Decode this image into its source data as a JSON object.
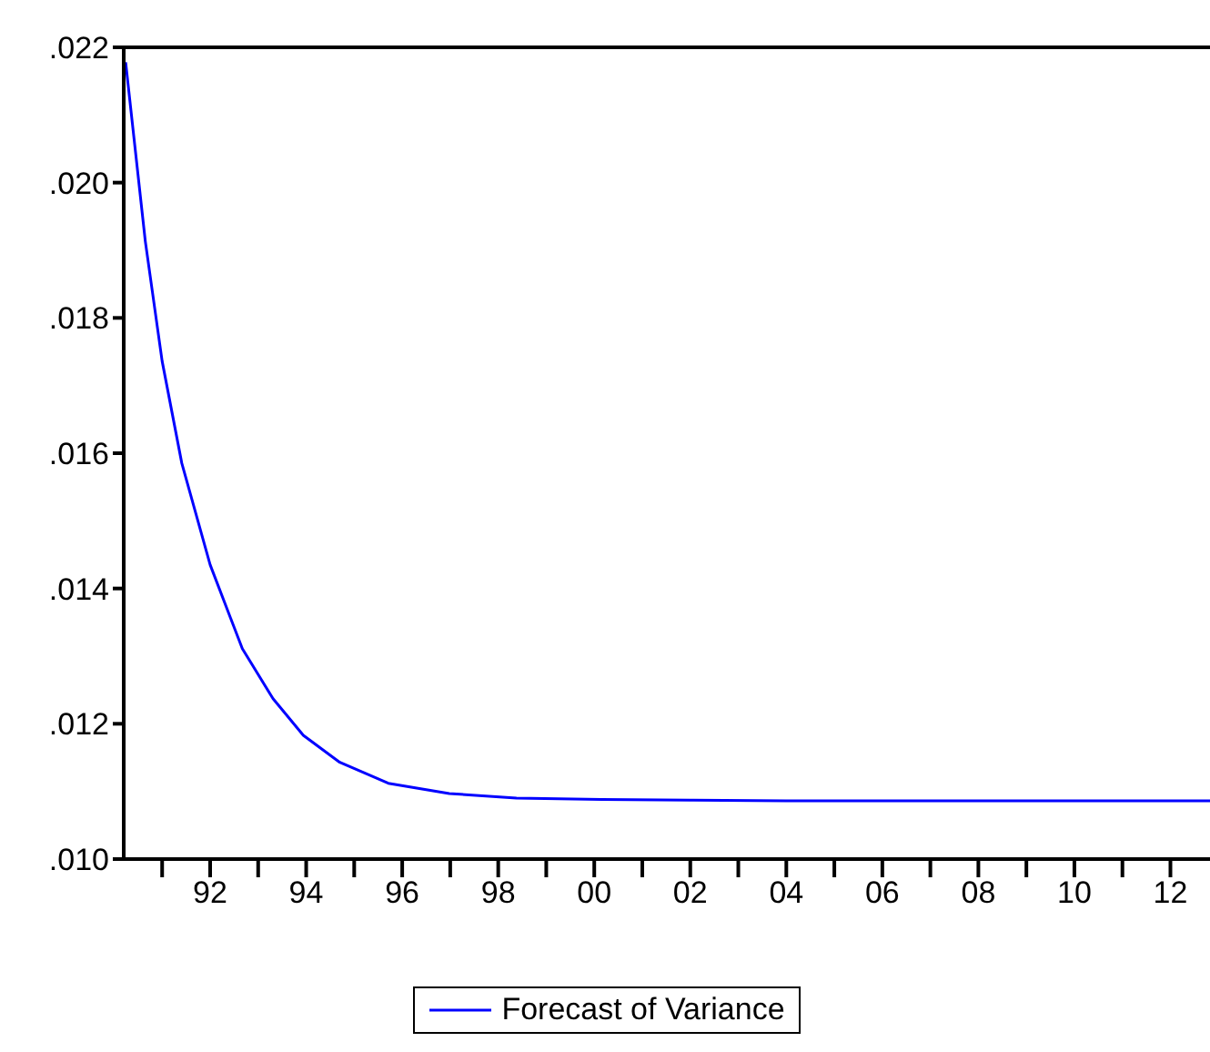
{
  "chart_data": {
    "type": "line",
    "x": [
      1990.24,
      1990.65,
      1991.0,
      1991.41,
      1992.0,
      1992.67,
      1993.31,
      1993.94,
      1994.7,
      1995.71,
      1996.98,
      1998.38,
      2000.15,
      2002.0,
      2004.0,
      2006.0,
      2008.0,
      2010.0,
      2012.0,
      2012.9
    ],
    "series": [
      {
        "name": "Forecast of Variance",
        "color": "#0000ff",
        "values": [
          0.02178,
          0.01913,
          0.01736,
          0.01585,
          0.01435,
          0.01311,
          0.01237,
          0.01183,
          0.01143,
          0.01112,
          0.01097,
          0.0109,
          0.01088,
          0.01087,
          0.01086,
          0.01086,
          0.01086,
          0.01086,
          0.01086,
          0.01086
        ]
      }
    ],
    "xlim": [
      1990.2,
      2012.9
    ],
    "xticks": [
      {
        "value": 1991,
        "label": null
      },
      {
        "value": 1992,
        "label": "92"
      },
      {
        "value": 1993,
        "label": null
      },
      {
        "value": 1994,
        "label": "94"
      },
      {
        "value": 1995,
        "label": null
      },
      {
        "value": 1996,
        "label": "96"
      },
      {
        "value": 1997,
        "label": null
      },
      {
        "value": 1998,
        "label": "98"
      },
      {
        "value": 1999,
        "label": null
      },
      {
        "value": 2000,
        "label": "00"
      },
      {
        "value": 2001,
        "label": null
      },
      {
        "value": 2002,
        "label": "02"
      },
      {
        "value": 2003,
        "label": null
      },
      {
        "value": 2004,
        "label": "04"
      },
      {
        "value": 2005,
        "label": null
      },
      {
        "value": 2006,
        "label": "06"
      },
      {
        "value": 2007,
        "label": null
      },
      {
        "value": 2008,
        "label": "08"
      },
      {
        "value": 2009,
        "label": null
      },
      {
        "value": 2010,
        "label": "10"
      },
      {
        "value": 2011,
        "label": null
      },
      {
        "value": 2012,
        "label": "12"
      }
    ],
    "ylim": [
      0.01,
      0.022
    ],
    "yticks": [
      {
        "value": 0.01,
        "label": ".010"
      },
      {
        "value": 0.012,
        "label": ".012"
      },
      {
        "value": 0.014,
        "label": ".014"
      },
      {
        "value": 0.016,
        "label": ".016"
      },
      {
        "value": 0.018,
        "label": ".018"
      },
      {
        "value": 0.02,
        "label": ".020"
      },
      {
        "value": 0.022,
        "label": ".022"
      }
    ],
    "grid": false,
    "legend": "bottom",
    "marker": "none",
    "line_style": "solid"
  }
}
